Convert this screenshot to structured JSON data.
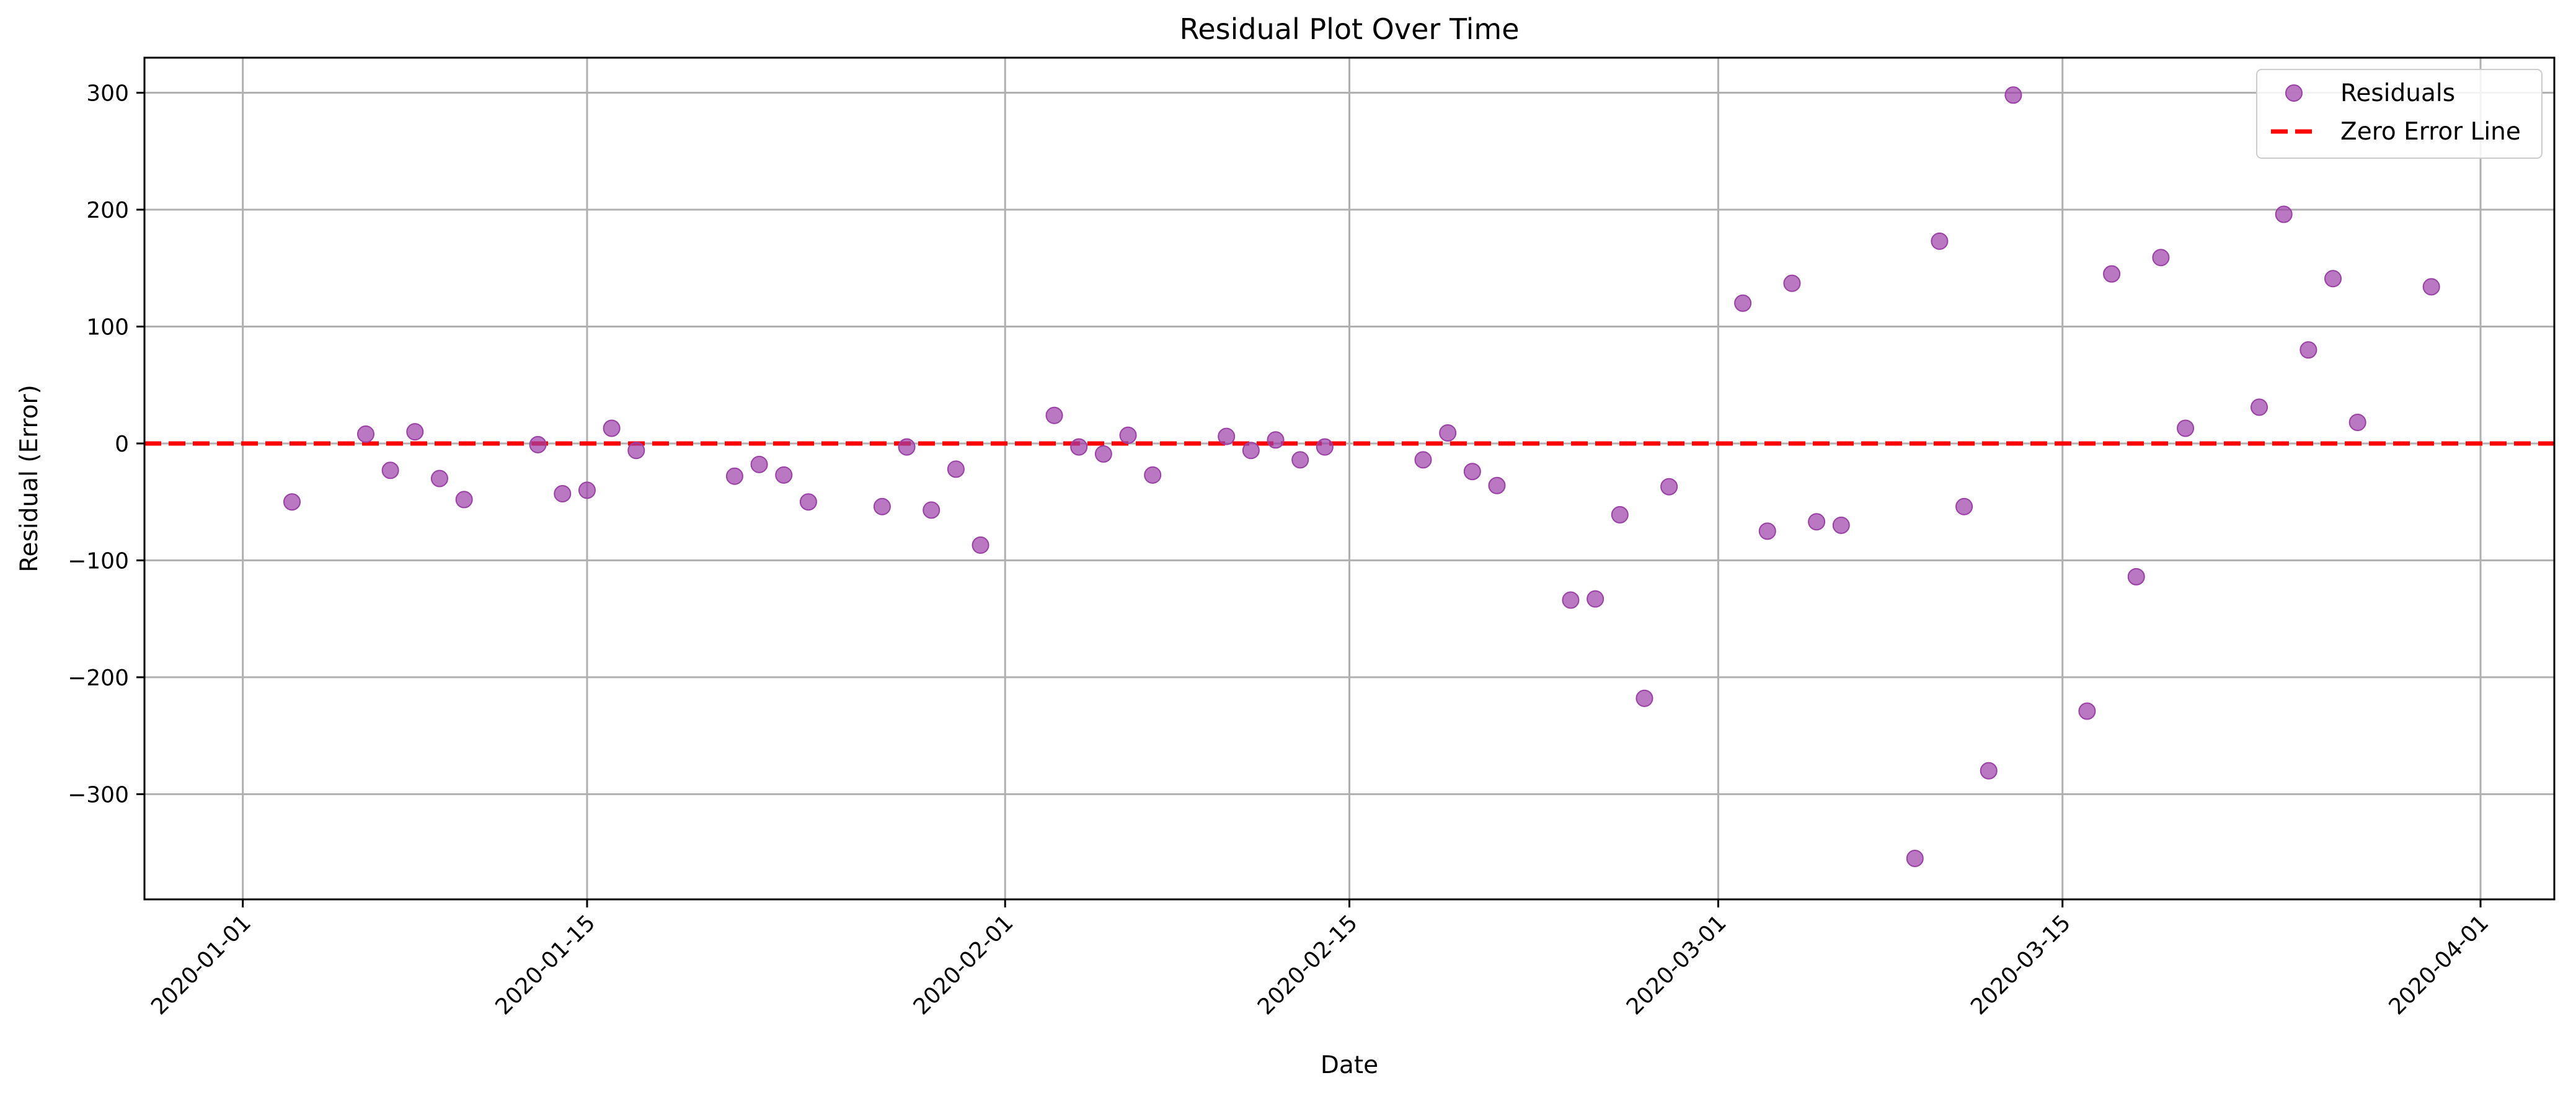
{
  "chart_data": {
    "type": "scatter",
    "title": "Residual Plot Over Time",
    "xlabel": "Date",
    "ylabel": "Residual (Error)",
    "xlim": [
      "2019-12-28",
      "2020-04-04"
    ],
    "ylim": [
      -390,
      330
    ],
    "x_ticks": [
      "2020-01-01",
      "2020-01-15",
      "2020-02-01",
      "2020-02-15",
      "2020-03-01",
      "2020-03-15",
      "2020-04-01"
    ],
    "y_ticks": [
      300,
      200,
      100,
      0,
      -100,
      -200,
      -300
    ],
    "y_tick_labels": [
      "300",
      "200",
      "100",
      "0",
      "−100",
      "−200",
      "−300"
    ],
    "grid": true,
    "legend": "top-right",
    "series": [
      {
        "name": "Residuals",
        "kind": "scatter",
        "color": "#9b3fa7",
        "points": [
          {
            "x": "2020-01-03",
            "y": -50
          },
          {
            "x": "2020-01-06",
            "y": 8
          },
          {
            "x": "2020-01-07",
            "y": -23
          },
          {
            "x": "2020-01-08",
            "y": 10
          },
          {
            "x": "2020-01-09",
            "y": -30
          },
          {
            "x": "2020-01-10",
            "y": -48
          },
          {
            "x": "2020-01-13",
            "y": -1
          },
          {
            "x": "2020-01-14",
            "y": -43
          },
          {
            "x": "2020-01-15",
            "y": -40
          },
          {
            "x": "2020-01-16",
            "y": 13
          },
          {
            "x": "2020-01-17",
            "y": -6
          },
          {
            "x": "2020-01-21",
            "y": -28
          },
          {
            "x": "2020-01-22",
            "y": -18
          },
          {
            "x": "2020-01-23",
            "y": -27
          },
          {
            "x": "2020-01-24",
            "y": -50
          },
          {
            "x": "2020-01-27",
            "y": -54
          },
          {
            "x": "2020-01-28",
            "y": -3
          },
          {
            "x": "2020-01-29",
            "y": -57
          },
          {
            "x": "2020-01-30",
            "y": -22
          },
          {
            "x": "2020-01-31",
            "y": -87
          },
          {
            "x": "2020-02-03",
            "y": 24
          },
          {
            "x": "2020-02-04",
            "y": -3
          },
          {
            "x": "2020-02-05",
            "y": -9
          },
          {
            "x": "2020-02-06",
            "y": 7
          },
          {
            "x": "2020-02-07",
            "y": -27
          },
          {
            "x": "2020-02-10",
            "y": 6
          },
          {
            "x": "2020-02-11",
            "y": -6
          },
          {
            "x": "2020-02-12",
            "y": 3
          },
          {
            "x": "2020-02-13",
            "y": -14
          },
          {
            "x": "2020-02-14",
            "y": -3
          },
          {
            "x": "2020-02-18",
            "y": -14
          },
          {
            "x": "2020-02-19",
            "y": 9
          },
          {
            "x": "2020-02-20",
            "y": -24
          },
          {
            "x": "2020-02-21",
            "y": -36
          },
          {
            "x": "2020-02-24",
            "y": -134
          },
          {
            "x": "2020-02-25",
            "y": -133
          },
          {
            "x": "2020-02-26",
            "y": -61
          },
          {
            "x": "2020-02-27",
            "y": -218
          },
          {
            "x": "2020-02-28",
            "y": -37
          },
          {
            "x": "2020-03-02",
            "y": 120
          },
          {
            "x": "2020-03-03",
            "y": -75
          },
          {
            "x": "2020-03-04",
            "y": 137
          },
          {
            "x": "2020-03-05",
            "y": -67
          },
          {
            "x": "2020-03-06",
            "y": -70
          },
          {
            "x": "2020-03-09",
            "y": -355
          },
          {
            "x": "2020-03-10",
            "y": 173
          },
          {
            "x": "2020-03-11",
            "y": -54
          },
          {
            "x": "2020-03-12",
            "y": -280
          },
          {
            "x": "2020-03-13",
            "y": 298
          },
          {
            "x": "2020-03-16",
            "y": -229
          },
          {
            "x": "2020-03-17",
            "y": 145
          },
          {
            "x": "2020-03-18",
            "y": -114
          },
          {
            "x": "2020-03-19",
            "y": 159
          },
          {
            "x": "2020-03-20",
            "y": 13
          },
          {
            "x": "2020-03-23",
            "y": 31
          },
          {
            "x": "2020-03-24",
            "y": 196
          },
          {
            "x": "2020-03-25",
            "y": 80
          },
          {
            "x": "2020-03-26",
            "y": 141
          },
          {
            "x": "2020-03-27",
            "y": 18
          },
          {
            "x": "2020-03-30",
            "y": 134
          }
        ]
      },
      {
        "name": "Zero Error Line",
        "kind": "hline",
        "y": 0,
        "color": "#ff0000",
        "style": "dashed"
      }
    ]
  }
}
